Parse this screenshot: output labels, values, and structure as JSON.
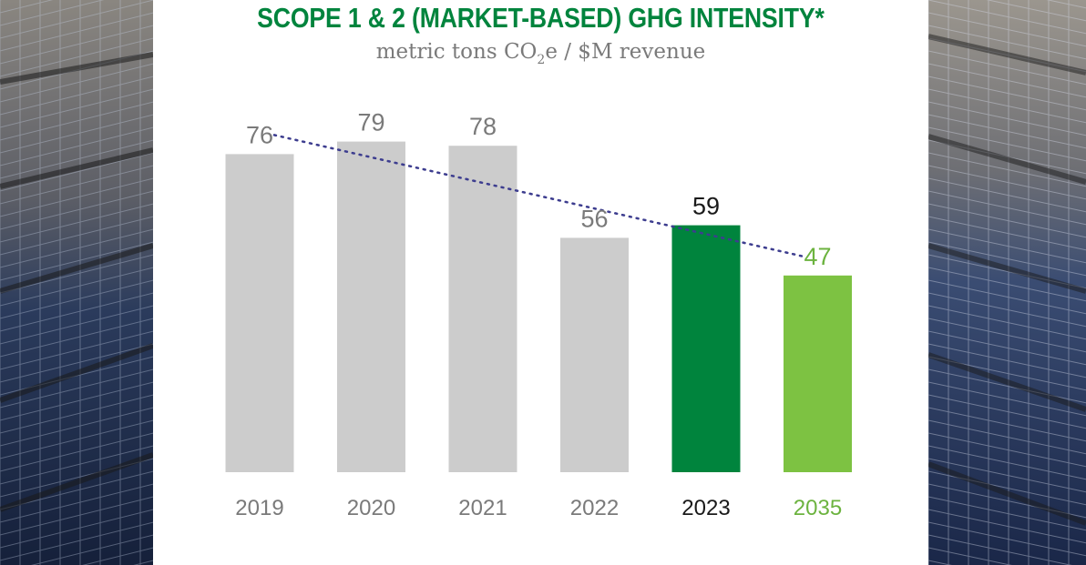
{
  "chart_data": {
    "type": "bar",
    "title": "SCOPE 1 & 2 (MARKET-BASED) GHG INTENSITY*",
    "subtitle_parts": {
      "pre": "metric tons CO",
      "sub": "2",
      "post": "e / $M revenue"
    },
    "categories": [
      "2019",
      "2020",
      "2021",
      "2022",
      "2023",
      "2035"
    ],
    "values": [
      76,
      79,
      78,
      56,
      59,
      47
    ],
    "data_labels": [
      "76",
      "79",
      "78",
      "56",
      "59",
      "47"
    ],
    "bar_colors": [
      "#cccccc",
      "#cccccc",
      "#cccccc",
      "#cccccc",
      "#00843d",
      "#7dc242"
    ],
    "label_colors": [
      "#7a7a7a",
      "#7a7a7a",
      "#7a7a7a",
      "#7a7a7a",
      "#1a1a1a",
      "#6cb33f"
    ],
    "trend_line": {
      "from": "2019",
      "to": "2035",
      "style": "dotted",
      "color": "#3d3d8f"
    },
    "ylim": [
      0,
      85
    ],
    "xlabel": "",
    "ylabel": "",
    "grid": false
  },
  "colors": {
    "title": "#00843d",
    "subtitle": "#7a7a7a"
  }
}
